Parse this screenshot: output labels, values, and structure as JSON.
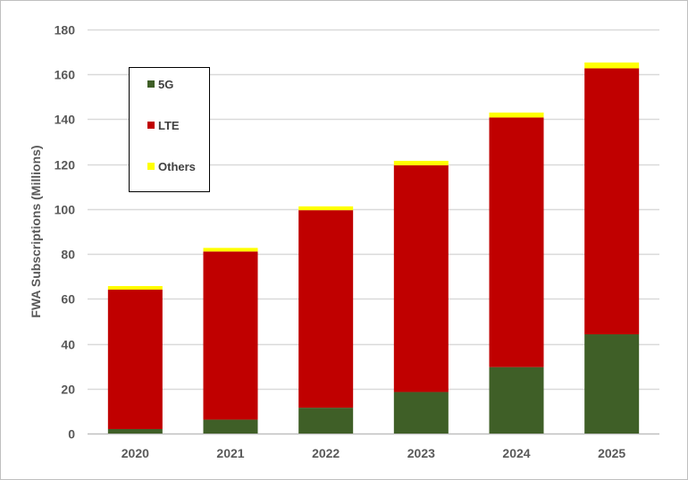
{
  "chart_data": {
    "type": "bar",
    "stacked": true,
    "title": "",
    "xlabel": "",
    "ylabel": "FWA Subscriptions (Millions)",
    "ylim": [
      0,
      180
    ],
    "yticks": [
      0,
      20,
      40,
      60,
      80,
      100,
      120,
      140,
      160,
      180
    ],
    "grid": true,
    "legend_position": "top-left",
    "categories": [
      "2020",
      "2021",
      "2022",
      "2023",
      "2024",
      "2025"
    ],
    "series": [
      {
        "name": "5G",
        "color": "#3f5f27",
        "values": [
          2.0,
          6.2,
          11.5,
          18.5,
          29.6,
          44.2
        ]
      },
      {
        "name": "LTE",
        "color": "#c00000",
        "values": [
          62.1,
          74.9,
          88.0,
          101.0,
          111.2,
          118.5
        ]
      },
      {
        "name": "Others",
        "color": "#ffff00",
        "values": [
          1.6,
          1.6,
          1.7,
          2.0,
          2.2,
          2.6
        ]
      }
    ]
  }
}
